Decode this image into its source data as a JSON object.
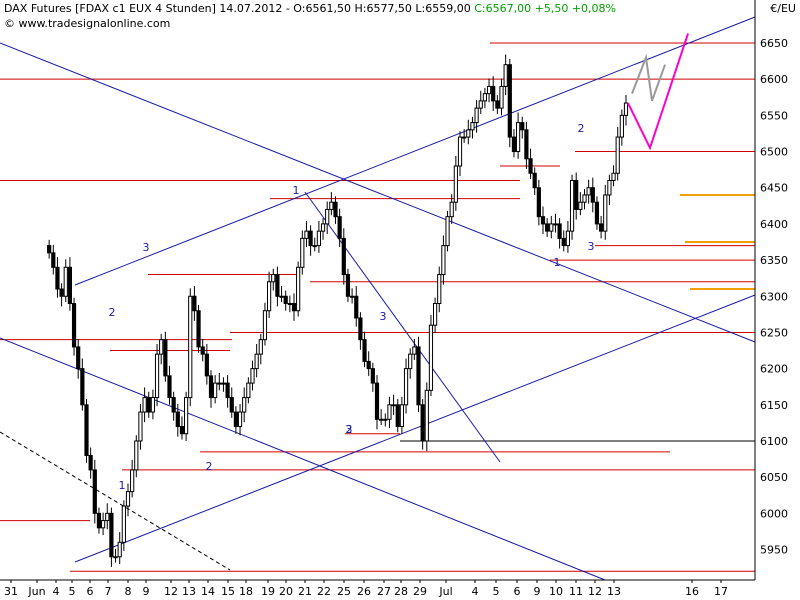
{
  "header": {
    "title": "DAX Futures [FDAX c1 EUX  4 Stunden] 14.07.2012 - O:6561,50 H:6577,50 L:6559,00",
    "change": "C:6567,00 +5,50 +0,08%",
    "source": "© www.tradesignalonline.com",
    "unit": "€/EU"
  },
  "chart_data": {
    "type": "candlestick",
    "title": "DAX Futures [FDAX c1 EUX  4 Stunden] 14.07.2012",
    "ylim": [
      5910,
      6680
    ],
    "y_ticks": [
      5950,
      6000,
      6050,
      6100,
      6150,
      6200,
      6250,
      6300,
      6350,
      6400,
      6450,
      6500,
      6550,
      6600,
      6650
    ],
    "x_ticks": [
      "31",
      "Jun",
      "4",
      "5",
      "6",
      "7",
      "8",
      "9",
      "12",
      "13",
      "14",
      "15",
      "18",
      "19",
      "20",
      "21",
      "22",
      "25",
      "26",
      "27",
      "28",
      "29",
      "Jul",
      "4",
      "5",
      "6",
      "9",
      "10",
      "11",
      "12",
      "13",
      "16",
      "17"
    ],
    "x_tick_positions": [
      0,
      1,
      2,
      3,
      4,
      5,
      6,
      7,
      8,
      9,
      10,
      11,
      12,
      13,
      14,
      15,
      16,
      17,
      18,
      19,
      20,
      21,
      22,
      23,
      24,
      25,
      26,
      27,
      28,
      29,
      30,
      31,
      32
    ],
    "x_tick_slot_centers": [
      11,
      37,
      56,
      72,
      90,
      108,
      128,
      146,
      171,
      189,
      208,
      228,
      246,
      268,
      286,
      305,
      324,
      344,
      364,
      384,
      401,
      420,
      446,
      475,
      496,
      517,
      537,
      556,
      576,
      595,
      614,
      692,
      721
    ],
    "last_candle_center_x": 626,
    "candle_spacing": 4.15,
    "closes": [
      6360,
      6340,
      6310,
      6300,
      6340,
      6290,
      6230,
      6200,
      6150,
      6080,
      6060,
      6000,
      5980,
      5990,
      6000,
      5940,
      5940,
      5960,
      6010,
      6030,
      6060,
      6100,
      6140,
      6160,
      6140,
      6160,
      6220,
      6240,
      6190,
      6160,
      6140,
      6120,
      6110,
      6160,
      6300,
      6280,
      6230,
      6220,
      6190,
      6160,
      6180,
      6180,
      6180,
      6160,
      6140,
      6120,
      6140,
      6160,
      6180,
      6200,
      6220,
      6240,
      6280,
      6320,
      6330,
      6300,
      6300,
      6290,
      6290,
      6280,
      6340,
      6380,
      6390,
      6370,
      6370,
      6390,
      6400,
      6420,
      6430,
      6410,
      6380,
      6330,
      6300,
      6300,
      6270,
      6240,
      6210,
      6200,
      6180,
      6130,
      6130,
      6130,
      6150,
      6150,
      6120,
      6150,
      6200,
      6220,
      6230,
      6150,
      6100,
      6170,
      6260,
      6290,
      6330,
      6370,
      6410,
      6430,
      6480,
      6520,
      6520,
      6530,
      6540,
      6560,
      6570,
      6580,
      6590,
      6570,
      6560,
      6590,
      6620,
      6520,
      6500,
      6540,
      6530,
      6490,
      6470,
      6450,
      6410,
      6400,
      6390,
      6400,
      6400,
      6380,
      6370,
      6390,
      6460,
      6420,
      6430,
      6440,
      6450,
      6430,
      6400,
      6390,
      6440,
      6460,
      6470,
      6520,
      6550,
      6567
    ],
    "price_levels_red": [
      6650,
      6600,
      6500,
      6480,
      6460,
      6435,
      6370,
      6350,
      6320,
      6330,
      6250,
      6240,
      6225,
      6110,
      6085,
      6060,
      5990,
      5920
    ],
    "price_levels_black": [
      6100
    ],
    "price_levels_orange": [
      6440,
      6375,
      6310
    ],
    "forecast_magenta": [
      [
        6505,
        6663
      ],
      [
        6565,
        6505
      ]
    ],
    "forecast_gray": [
      [
        6580,
        6630
      ],
      [
        6620,
        6570
      ]
    ],
    "wave_labels": [
      "1",
      "2",
      "3",
      "2",
      "3",
      "1",
      "2",
      "3",
      "2",
      "3",
      "1"
    ]
  }
}
